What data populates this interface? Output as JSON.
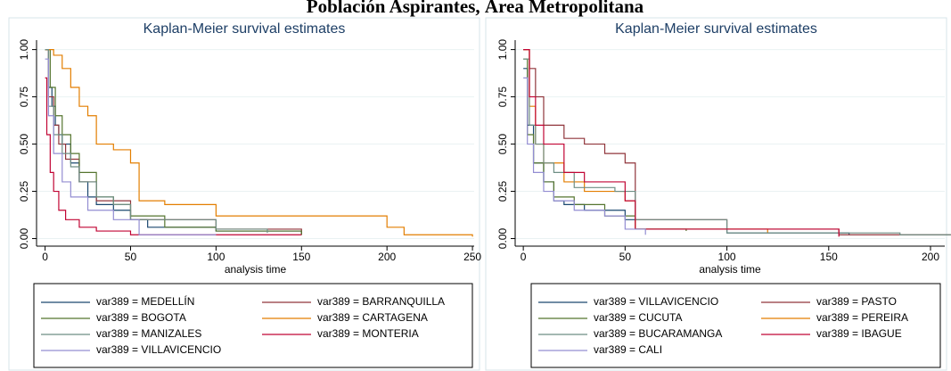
{
  "title": "Población Aspirantes, Área Metropolitana",
  "chart_data": [
    {
      "type": "step",
      "title": "Kaplan-Meier survival estimates",
      "x_label": "analysis time",
      "xlim": [
        -5,
        251
      ],
      "ylim": [
        -0.04,
        1.05
      ],
      "xticks": [
        0,
        50,
        100,
        150,
        200,
        250
      ],
      "yticks": [
        {
          "value": 0,
          "label": "0.00"
        },
        {
          "value": 0.25,
          "label": "0.25"
        },
        {
          "value": 0.5,
          "label": "0.50"
        },
        {
          "value": 0.75,
          "label": "0.75"
        },
        {
          "value": 1,
          "label": "1.00"
        }
      ],
      "grid": true,
      "series": [
        {
          "name": "var389 = MEDELLÍN",
          "color": "#1a476f",
          "x": [
            0,
            2,
            4,
            6,
            8,
            10,
            15,
            20,
            25,
            30,
            40,
            50,
            60,
            100,
            150
          ],
          "values": [
            1,
            0.8,
            0.7,
            0.6,
            0.55,
            0.5,
            0.4,
            0.3,
            0.22,
            0.18,
            0.15,
            0.1,
            0.06,
            0.04,
            0.02
          ]
        },
        {
          "name": "var389 = BARRANQUILLA",
          "color": "#90353b",
          "x": [
            0,
            2,
            5,
            8,
            12,
            20,
            30,
            50,
            100,
            150
          ],
          "values": [
            1,
            0.75,
            0.6,
            0.5,
            0.42,
            0.3,
            0.2,
            0.1,
            0.05,
            0.02
          ]
        },
        {
          "name": "var389 = BOGOTA",
          "color": "#55752f",
          "x": [
            0,
            3,
            6,
            10,
            15,
            20,
            30,
            40,
            50,
            70,
            100,
            150
          ],
          "values": [
            1,
            0.8,
            0.65,
            0.55,
            0.45,
            0.35,
            0.22,
            0.18,
            0.12,
            0.06,
            0.04,
            0.02
          ]
        },
        {
          "name": "var389 = CARTAGENA",
          "color": "#e37e00",
          "x": [
            0,
            5,
            10,
            15,
            20,
            25,
            30,
            40,
            50,
            55,
            70,
            100,
            200,
            210,
            250
          ],
          "values": [
            1,
            0.97,
            0.9,
            0.8,
            0.7,
            0.65,
            0.5,
            0.47,
            0.4,
            0.2,
            0.18,
            0.12,
            0.06,
            0.02,
            0.01
          ]
        },
        {
          "name": "var389 = MANIZALES",
          "color": "#6e8e84",
          "x": [
            0,
            2,
            5,
            10,
            15,
            20,
            30,
            40,
            50,
            100,
            130
          ],
          "values": [
            1,
            0.7,
            0.55,
            0.45,
            0.38,
            0.3,
            0.22,
            0.18,
            0.1,
            0.05,
            0.03
          ]
        },
        {
          "name": "var389 = MONTERIA",
          "color": "#c10534",
          "x": [
            0,
            1,
            3,
            5,
            8,
            12,
            20,
            30,
            50,
            150
          ],
          "values": [
            0.85,
            0.55,
            0.35,
            0.25,
            0.15,
            0.1,
            0.06,
            0.04,
            0.02,
            0.02
          ]
        },
        {
          "name": "var389 = VILLAVICENCIO",
          "color": "#938dd2",
          "x": [
            0,
            2,
            5,
            10,
            15,
            25,
            40,
            55,
            100
          ],
          "values": [
            0.95,
            0.65,
            0.45,
            0.3,
            0.22,
            0.15,
            0.1,
            0.02,
            0.02
          ]
        }
      ]
    },
    {
      "type": "step",
      "title": "Kaplan-Meier survival estimates",
      "x_label": "analysis time",
      "xlim": [
        -4,
        207
      ],
      "ylim": [
        -0.04,
        1.05
      ],
      "xticks": [
        0,
        50,
        100,
        150,
        200
      ],
      "yticks": [
        {
          "value": 0,
          "label": "0.00"
        },
        {
          "value": 0.25,
          "label": "0.25"
        },
        {
          "value": 0.5,
          "label": "0.50"
        },
        {
          "value": 0.75,
          "label": "0.75"
        },
        {
          "value": 1,
          "label": "1.00"
        }
      ],
      "grid": true,
      "series": [
        {
          "name": "var389 = VILLAVICENCIO",
          "color": "#1a476f",
          "x": [
            0,
            2,
            5,
            10,
            15,
            20,
            30,
            50,
            55,
            100,
            160
          ],
          "values": [
            0.9,
            0.6,
            0.4,
            0.3,
            0.2,
            0.18,
            0.15,
            0.1,
            0.05,
            0.03,
            0.02
          ]
        },
        {
          "name": "var389 = PASTO",
          "color": "#90353b",
          "x": [
            0,
            3,
            6,
            10,
            20,
            30,
            40,
            50,
            55,
            100,
            155,
            210
          ],
          "values": [
            1,
            0.9,
            0.75,
            0.6,
            0.53,
            0.5,
            0.45,
            0.4,
            0.1,
            0.05,
            0.02,
            0.02
          ]
        },
        {
          "name": "var389 = CUCUTA",
          "color": "#55752f",
          "x": [
            0,
            2,
            5,
            10,
            15,
            25,
            40,
            55,
            80
          ],
          "values": [
            0.95,
            0.55,
            0.4,
            0.3,
            0.22,
            0.18,
            0.12,
            0.05,
            0.04
          ]
        },
        {
          "name": "var389 = PEREIRA",
          "color": "#e37e00",
          "x": [
            0,
            3,
            6,
            10,
            20,
            30,
            50,
            55,
            120
          ],
          "values": [
            1,
            0.7,
            0.5,
            0.4,
            0.3,
            0.25,
            0.2,
            0.05,
            0.03
          ]
        },
        {
          "name": "var389 = BUCARAMANGA",
          "color": "#6e8e84",
          "x": [
            0,
            3,
            6,
            10,
            15,
            25,
            45,
            55,
            100,
            185,
            210
          ],
          "values": [
            0.95,
            0.6,
            0.5,
            0.4,
            0.35,
            0.27,
            0.25,
            0.1,
            0.03,
            0.02,
            0.02
          ]
        },
        {
          "name": "var389 = IBAGUE",
          "color": "#c10534",
          "x": [
            0,
            3,
            6,
            10,
            20,
            30,
            50,
            55,
            155
          ],
          "values": [
            1,
            0.75,
            0.6,
            0.5,
            0.35,
            0.3,
            0.2,
            0.05,
            0.01
          ]
        },
        {
          "name": "var389 = CALI",
          "color": "#938dd2",
          "x": [
            0,
            2,
            5,
            10,
            15,
            25,
            40,
            50,
            60
          ],
          "values": [
            0.85,
            0.5,
            0.35,
            0.25,
            0.2,
            0.15,
            0.12,
            0.05,
            0.02
          ]
        }
      ]
    }
  ]
}
